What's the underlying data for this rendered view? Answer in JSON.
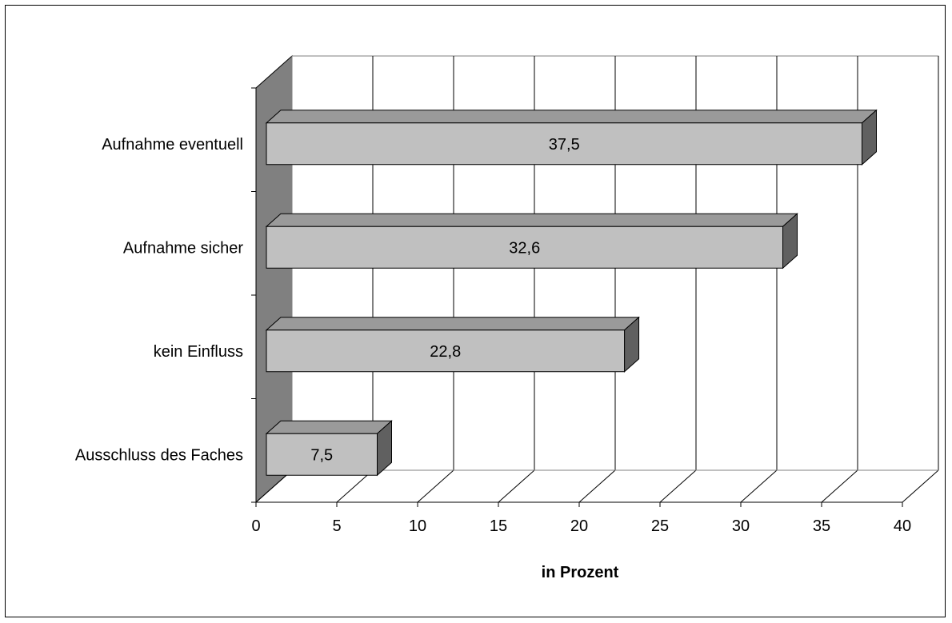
{
  "chart_data": {
    "type": "bar",
    "orientation": "horizontal",
    "style": "3d",
    "categories": [
      "Ausschluss des Faches",
      "kein Einfluss",
      "Aufnahme sicher",
      "Aufnahme eventuell"
    ],
    "values": [
      7.5,
      22.8,
      32.6,
      37.5
    ],
    "data_labels": [
      "7,5",
      "22,8",
      "32,6",
      "37,5"
    ],
    "xlabel": "in Prozent",
    "ylabel": "",
    "xlim": [
      0,
      40
    ],
    "xticks": [
      0,
      5,
      10,
      15,
      20,
      25,
      30,
      35,
      40
    ],
    "xtick_labels": [
      "0",
      "5",
      "10",
      "15",
      "20",
      "25",
      "30",
      "35",
      "40"
    ],
    "grid": true,
    "legend": "none",
    "colors": {
      "bar_front": "#c0c0c0",
      "bar_top": "#9a9a9a",
      "bar_side": "#606060",
      "side_wall": "#808080",
      "grid": "#000000"
    }
  }
}
